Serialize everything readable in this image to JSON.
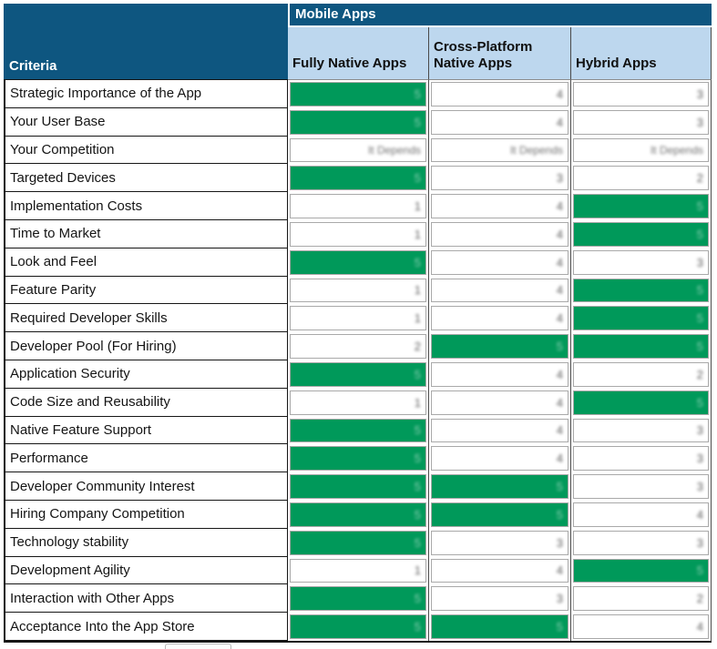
{
  "colors": {
    "header_dark_blue": "#0E5680",
    "header_light_blue": "#BDD7EE",
    "highlight_green": "#00995A"
  },
  "table": {
    "group_header": "Mobile Apps",
    "criteria_header": "Criteria",
    "columns": [
      "Fully Native Apps",
      "Cross-Platform Native Apps",
      "Hybrid Apps"
    ],
    "rows": [
      {
        "criteria": "Strategic Importance of the App",
        "values": [
          "5",
          "4",
          "3"
        ],
        "highlight": [
          true,
          false,
          false
        ]
      },
      {
        "criteria": "Your User Base",
        "values": [
          "5",
          "4",
          "3"
        ],
        "highlight": [
          true,
          false,
          false
        ]
      },
      {
        "criteria": "Your Competition",
        "values": [
          "It Depends",
          "It Depends",
          "It Depends"
        ],
        "highlight": [
          false,
          false,
          false
        ]
      },
      {
        "criteria": "Targeted Devices",
        "values": [
          "5",
          "3",
          "2"
        ],
        "highlight": [
          true,
          false,
          false
        ]
      },
      {
        "criteria": "Implementation Costs",
        "values": [
          "1",
          "4",
          "5"
        ],
        "highlight": [
          false,
          false,
          true
        ]
      },
      {
        "criteria": "Time to Market",
        "values": [
          "1",
          "4",
          "5"
        ],
        "highlight": [
          false,
          false,
          true
        ]
      },
      {
        "criteria": "Look and Feel",
        "values": [
          "5",
          "4",
          "3"
        ],
        "highlight": [
          true,
          false,
          false
        ]
      },
      {
        "criteria": "Feature Parity",
        "values": [
          "1",
          "4",
          "5"
        ],
        "highlight": [
          false,
          false,
          true
        ]
      },
      {
        "criteria": "Required Developer Skills",
        "values": [
          "1",
          "4",
          "5"
        ],
        "highlight": [
          false,
          false,
          true
        ]
      },
      {
        "criteria": "Developer Pool (For Hiring)",
        "values": [
          "2",
          "5",
          "5"
        ],
        "highlight": [
          false,
          true,
          true
        ]
      },
      {
        "criteria": "Application Security",
        "values": [
          "5",
          "4",
          "2"
        ],
        "highlight": [
          true,
          false,
          false
        ]
      },
      {
        "criteria": "Code Size and Reusability",
        "values": [
          "1",
          "4",
          "5"
        ],
        "highlight": [
          false,
          false,
          true
        ]
      },
      {
        "criteria": "Native Feature Support",
        "values": [
          "5",
          "4",
          "3"
        ],
        "highlight": [
          true,
          false,
          false
        ]
      },
      {
        "criteria": "Performance",
        "values": [
          "5",
          "4",
          "3"
        ],
        "highlight": [
          true,
          false,
          false
        ]
      },
      {
        "criteria": "Developer Community Interest",
        "values": [
          "5",
          "5",
          "3"
        ],
        "highlight": [
          true,
          true,
          false
        ]
      },
      {
        "criteria": "Hiring Company Competition",
        "values": [
          "5",
          "5",
          "4"
        ],
        "highlight": [
          true,
          true,
          false
        ]
      },
      {
        "criteria": "Technology stability",
        "values": [
          "5",
          "3",
          "3"
        ],
        "highlight": [
          true,
          false,
          false
        ]
      },
      {
        "criteria": "Development Agility",
        "values": [
          "1",
          "4",
          "5"
        ],
        "highlight": [
          false,
          false,
          true
        ]
      },
      {
        "criteria": "Interaction with Other Apps",
        "values": [
          "5",
          "3",
          "2"
        ],
        "highlight": [
          true,
          false,
          false
        ]
      },
      {
        "criteria": "Acceptance Into the App Store",
        "values": [
          "5",
          "5",
          "4"
        ],
        "highlight": [
          true,
          true,
          false
        ]
      }
    ]
  }
}
